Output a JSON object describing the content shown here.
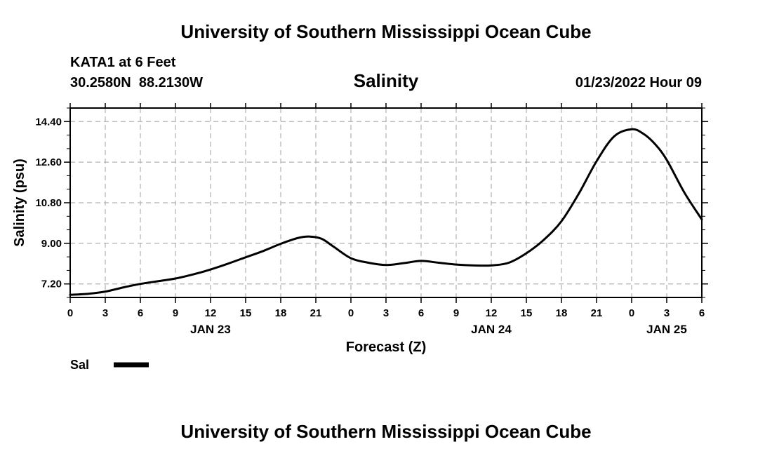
{
  "header": {
    "title": "University of Southern Mississippi Ocean Cube",
    "station": "KATA1 at 6 Feet",
    "coords": "30.2580N  88.2130W",
    "variable": "Salinity",
    "datetime": "01/23/2022 Hour 09"
  },
  "footer": {
    "title": "University of Southern Mississippi Ocean Cube"
  },
  "colors": {
    "line": "#000000",
    "grid": "#b0b0b0",
    "axis": "#000000"
  },
  "chart_data": {
    "type": "line",
    "title": "Salinity",
    "xlabel": "Forecast (Z)",
    "ylabel": "Salinity (psu)",
    "xlim": [
      0,
      54
    ],
    "ylim": [
      6.6,
      15.0
    ],
    "grid": true,
    "legend_position": "bottom-left",
    "x_ticks": [
      0,
      3,
      6,
      9,
      12,
      15,
      18,
      21,
      24,
      27,
      30,
      33,
      36,
      39,
      42,
      45,
      48,
      51,
      54
    ],
    "x_tick_labels": [
      "0",
      "3",
      "6",
      "9",
      "12",
      "15",
      "18",
      "21",
      "0",
      "3",
      "6",
      "9",
      "12",
      "15",
      "18",
      "21",
      "0",
      "3",
      "6"
    ],
    "y_ticks": [
      7.2,
      9.0,
      10.8,
      12.6,
      14.4
    ],
    "y_tick_labels": [
      "7.20",
      "9.00",
      "10.80",
      "12.60",
      "14.40"
    ],
    "date_labels": [
      {
        "x": 12,
        "label": "JAN 23"
      },
      {
        "x": 36,
        "label": "JAN 24"
      },
      {
        "x": 51,
        "label": "JAN 25"
      }
    ],
    "series": [
      {
        "name": "Sal",
        "x": [
          0,
          1.5,
          3,
          4.5,
          6,
          7.5,
          9,
          10.5,
          12,
          13.5,
          15,
          16.5,
          18,
          19.5,
          20.5,
          21.5,
          22.5,
          24,
          25.5,
          27,
          28.5,
          30,
          31.5,
          33,
          34.5,
          36,
          37.5,
          39,
          40.5,
          42,
          43.5,
          45,
          46.5,
          48,
          49,
          50,
          51,
          52.5,
          54
        ],
        "values": [
          6.72,
          6.76,
          6.86,
          7.04,
          7.2,
          7.32,
          7.44,
          7.62,
          7.84,
          8.1,
          8.38,
          8.66,
          8.98,
          9.24,
          9.3,
          9.2,
          8.86,
          8.34,
          8.14,
          8.04,
          8.12,
          8.22,
          8.14,
          8.06,
          8.02,
          8.02,
          8.14,
          8.56,
          9.16,
          9.98,
          11.22,
          12.64,
          13.74,
          14.06,
          13.86,
          13.4,
          12.7,
          11.26,
          10.06
        ]
      }
    ]
  }
}
